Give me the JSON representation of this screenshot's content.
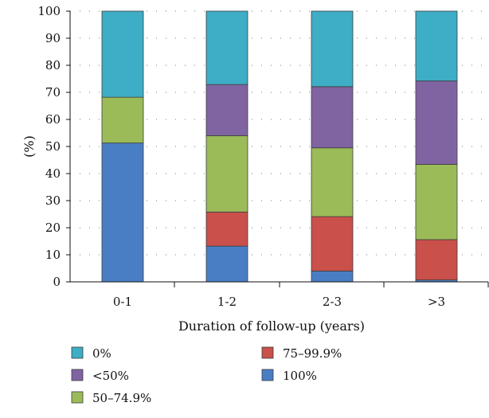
{
  "chart_data": {
    "type": "bar",
    "stacked": true,
    "categories": [
      "0-1",
      "1-2",
      "2-3",
      ">3"
    ],
    "xlabel": "Duration of follow-up (years)",
    "ylabel": "(%)",
    "ylim": [
      0,
      100
    ],
    "yticks": [
      0,
      10,
      20,
      30,
      40,
      50,
      60,
      70,
      80,
      90,
      100
    ],
    "grid": "horizontal dotted",
    "legend_position": "bottom",
    "series": [
      {
        "name": "100%",
        "color": "#4a7ec4",
        "values": [
          51.3,
          13.2,
          4.0,
          0.7
        ]
      },
      {
        "name": "75–99.9%",
        "color": "#c9504b",
        "values": [
          0,
          12.6,
          20.1,
          14.9
        ]
      },
      {
        "name": "50–74.9%",
        "color": "#9bbb59",
        "values": [
          16.9,
          28.2,
          25.4,
          27.8
        ]
      },
      {
        "name": "<50%",
        "color": "#8064a2",
        "values": [
          0,
          18.9,
          22.6,
          30.8
        ]
      },
      {
        "name": "0%",
        "color": "#3eadc6",
        "values": [
          31.8,
          27.1,
          27.9,
          25.8
        ]
      }
    ],
    "legend_order": [
      "0%",
      "<50%",
      "50–74.9%",
      "75–99.9%",
      "100%"
    ]
  }
}
